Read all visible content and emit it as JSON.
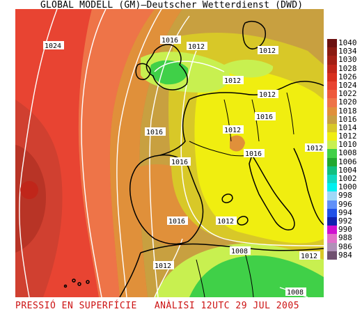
{
  "title": "GLOBAL MODELL (GM)—Deutscher Wetterdienst (DWD)",
  "caption": {
    "left": "PRESSIÓ EN SUPERFÍCIE",
    "right": "ANÀLISI 12UTC 29 JUL 2005"
  },
  "legend": [
    {
      "label": "1040",
      "color": "#6b1010"
    },
    {
      "label": "1034",
      "color": "#8a1a12"
    },
    {
      "label": "1030",
      "color": "#a32016"
    },
    {
      "label": "1028",
      "color": "#c0261a"
    },
    {
      "label": "1026",
      "color": "#d8301e"
    },
    {
      "label": "1024",
      "color": "#e84432"
    },
    {
      "label": "1022",
      "color": "#ee5a3c"
    },
    {
      "label": "1020",
      "color": "#ee7448"
    },
    {
      "label": "1018",
      "color": "#e0903a"
    },
    {
      "label": "1016",
      "color": "#c8a040"
    },
    {
      "label": "1014",
      "color": "#d8c828"
    },
    {
      "label": "1012",
      "color": "#f0ee10"
    },
    {
      "label": "1010",
      "color": "#c8f050"
    },
    {
      "label": "1008",
      "color": "#40d048"
    },
    {
      "label": "1006",
      "color": "#20a830"
    },
    {
      "label": "1004",
      "color": "#10c080"
    },
    {
      "label": "1002",
      "color": "#10d8c0"
    },
    {
      "label": "1000",
      "color": "#00f0f0"
    },
    {
      "label": "998",
      "color": "#a0d8f8"
    },
    {
      "label": "996",
      "color": "#6090f8"
    },
    {
      "label": "994",
      "color": "#2050e8"
    },
    {
      "label": "992",
      "color": "#1020b0"
    },
    {
      "label": "990",
      "color": "#d010d0"
    },
    {
      "label": "988",
      "color": "#e070c8"
    },
    {
      "label": "986",
      "color": "#b090b8"
    },
    {
      "label": "984",
      "color": "#705070"
    }
  ],
  "isobar_labels": [
    {
      "text": "1024"
    },
    {
      "text": "1016"
    },
    {
      "text": "1012"
    },
    {
      "text": "1012"
    },
    {
      "text": "1012"
    },
    {
      "text": "1012"
    },
    {
      "text": "1016"
    },
    {
      "text": "1012"
    },
    {
      "text": "1016"
    },
    {
      "text": "1016"
    },
    {
      "text": "1016"
    },
    {
      "text": "1016"
    },
    {
      "text": "1012"
    },
    {
      "text": "1012"
    },
    {
      "text": "1008"
    },
    {
      "text": "1012"
    },
    {
      "text": "1012"
    },
    {
      "text": "1008"
    }
  ]
}
